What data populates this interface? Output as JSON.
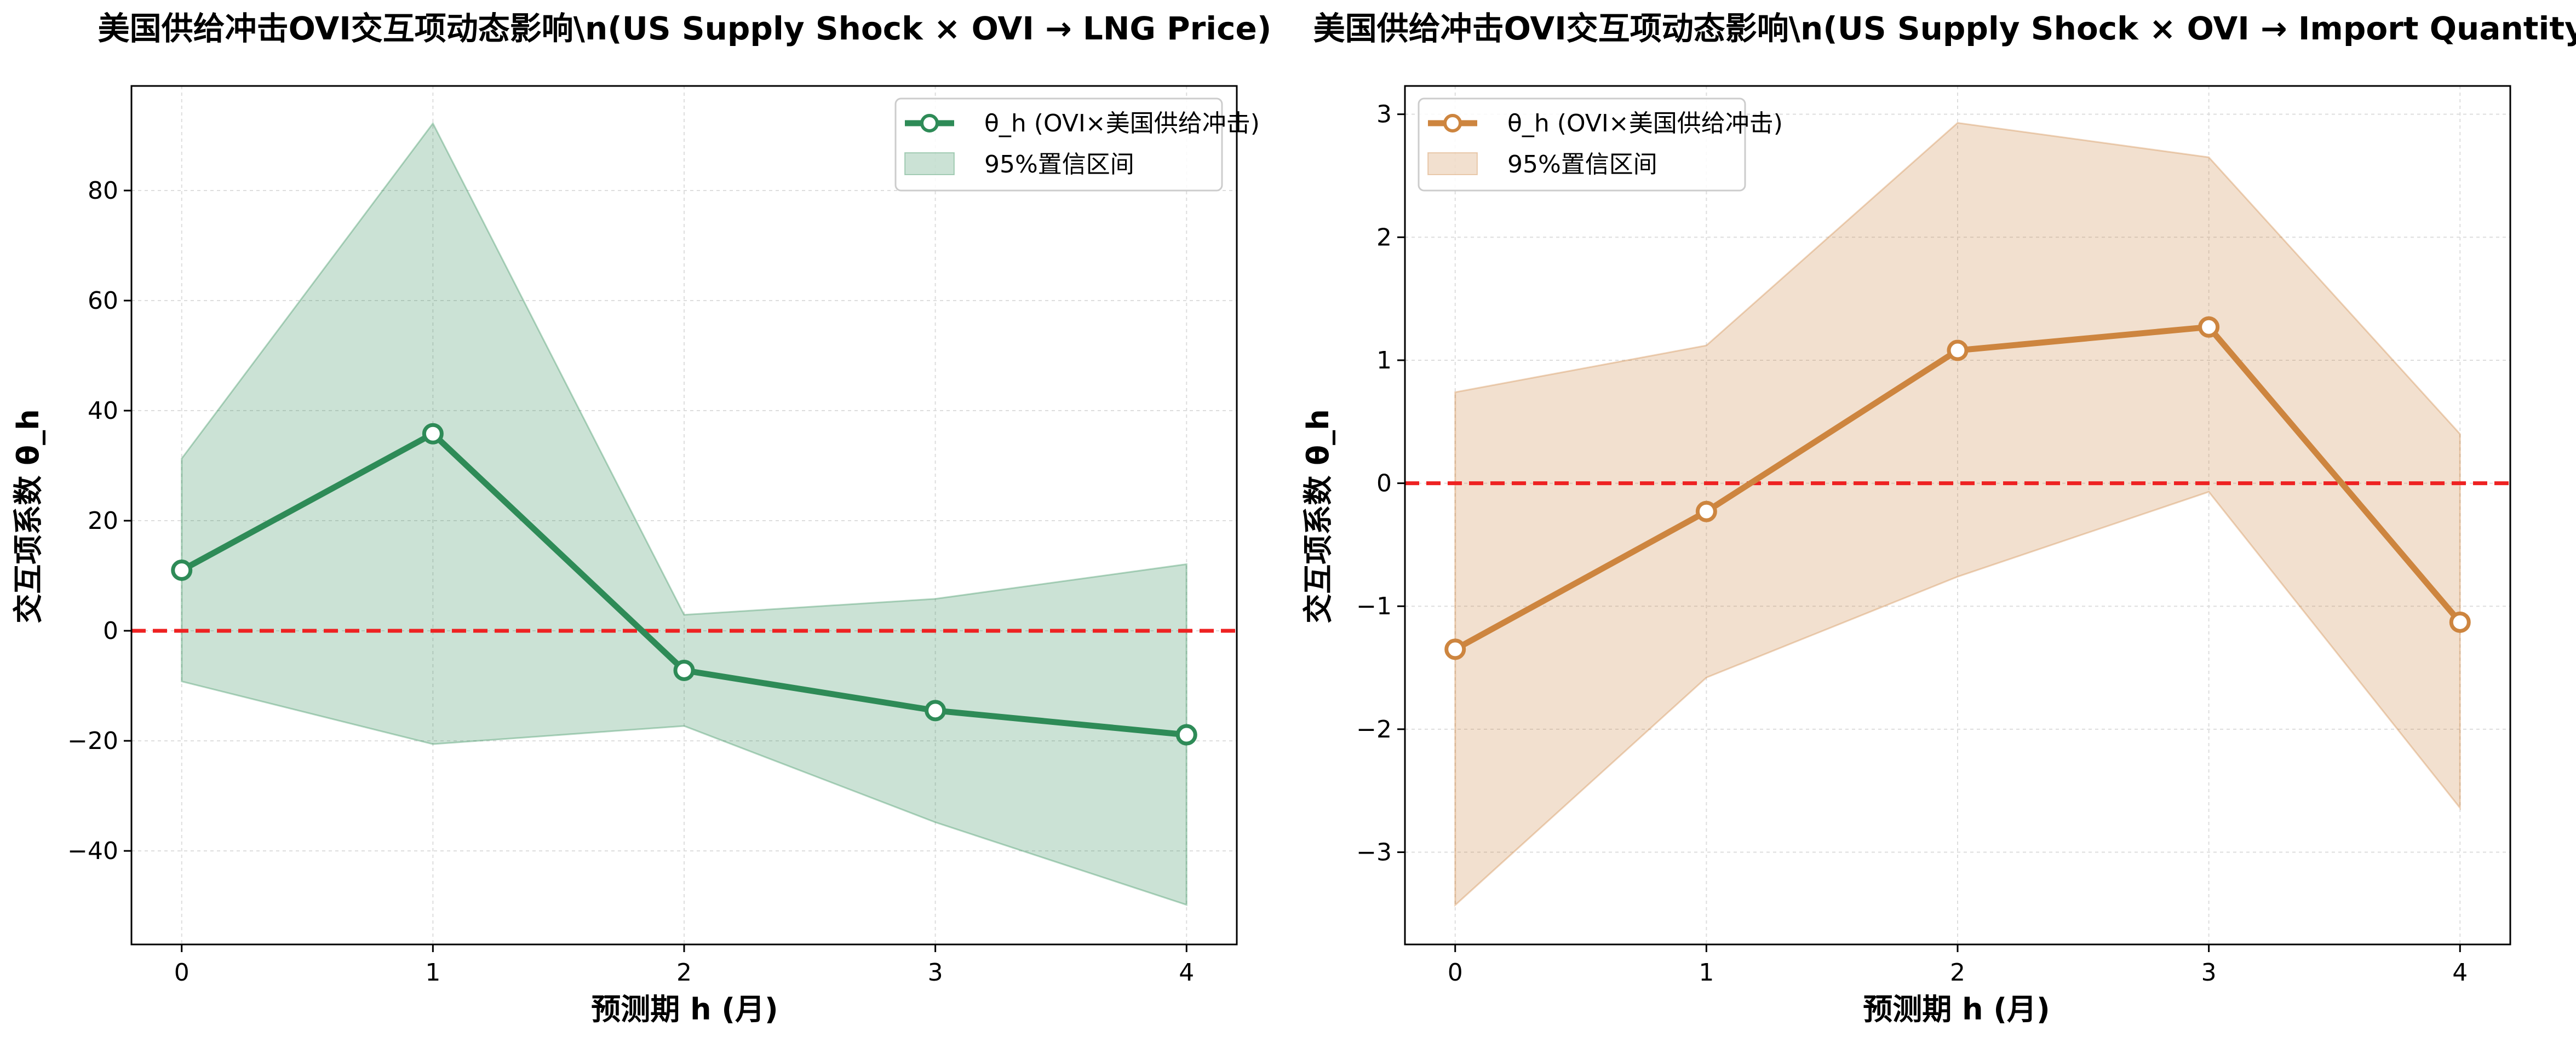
{
  "chart_data": [
    {
      "type": "line",
      "title": "美国供给冲击OVI交互项动态影响\\n(US Supply Shock × OVI → LNG Price)",
      "xlabel": "预测期 h (月)",
      "ylabel": "交互项系数 θ_h",
      "x": [
        0,
        1,
        2,
        3,
        4
      ],
      "xticks": [
        "0",
        "1",
        "2",
        "3",
        "4"
      ],
      "xlim": [
        -0.2,
        4.2
      ],
      "ylim": [
        -57,
        99
      ],
      "yticks": [
        -40,
        -20,
        0,
        20,
        40,
        60,
        80
      ],
      "ytick_labels": [
        "−40",
        "−20",
        "0",
        "20",
        "40",
        "60",
        "80"
      ],
      "grid": true,
      "zero_line": {
        "value": 0,
        "color": "#ee2222",
        "style": "dashed"
      },
      "legend_position": "upper right",
      "series": [
        {
          "name": "θ_h (OVI×美国供给冲击)",
          "values": [
            11,
            35.8,
            -7.2,
            -14.5,
            -18.9
          ],
          "color": "#2e8b57",
          "marker": "hollow-circle"
        }
      ],
      "band": {
        "name": "95%置信区间",
        "lower": [
          -9.2,
          -20.6,
          -17.3,
          -34.8,
          -49.8
        ],
        "upper": [
          31.3,
          92.2,
          2.9,
          5.8,
          12.1
        ],
        "color": "#2e8b57",
        "opacity": 0.25
      }
    },
    {
      "type": "line",
      "title": "美国供给冲击OVI交互项动态影响\\n(US Supply Shock × OVI → Import Quantity)",
      "xlabel": "预测期 h (月)",
      "ylabel": "交互项系数 θ_h",
      "x": [
        0,
        1,
        2,
        3,
        4
      ],
      "xticks": [
        "0",
        "1",
        "2",
        "3",
        "4"
      ],
      "xlim": [
        -0.2,
        4.2
      ],
      "ylim": [
        -3.75,
        3.23
      ],
      "yticks": [
        -3,
        -2,
        -1,
        0,
        1,
        2,
        3
      ],
      "ytick_labels": [
        "−3",
        "−2",
        "−1",
        "0",
        "1",
        "2",
        "3"
      ],
      "grid": true,
      "zero_line": {
        "value": 0,
        "color": "#ee2222",
        "style": "dashed"
      },
      "legend_position": "upper left",
      "series": [
        {
          "name": "θ_h (OVI×美国供给冲击)",
          "values": [
            -1.35,
            -0.23,
            1.08,
            1.27,
            -1.13
          ],
          "color": "#cd853f",
          "marker": "hollow-circle"
        }
      ],
      "band": {
        "name": "95%置信区间",
        "lower": [
          -3.43,
          -1.58,
          -0.76,
          -0.07,
          -2.64
        ],
        "upper": [
          0.74,
          1.12,
          2.93,
          2.65,
          0.4
        ],
        "color": "#cd853f",
        "opacity": 0.25
      }
    }
  ]
}
